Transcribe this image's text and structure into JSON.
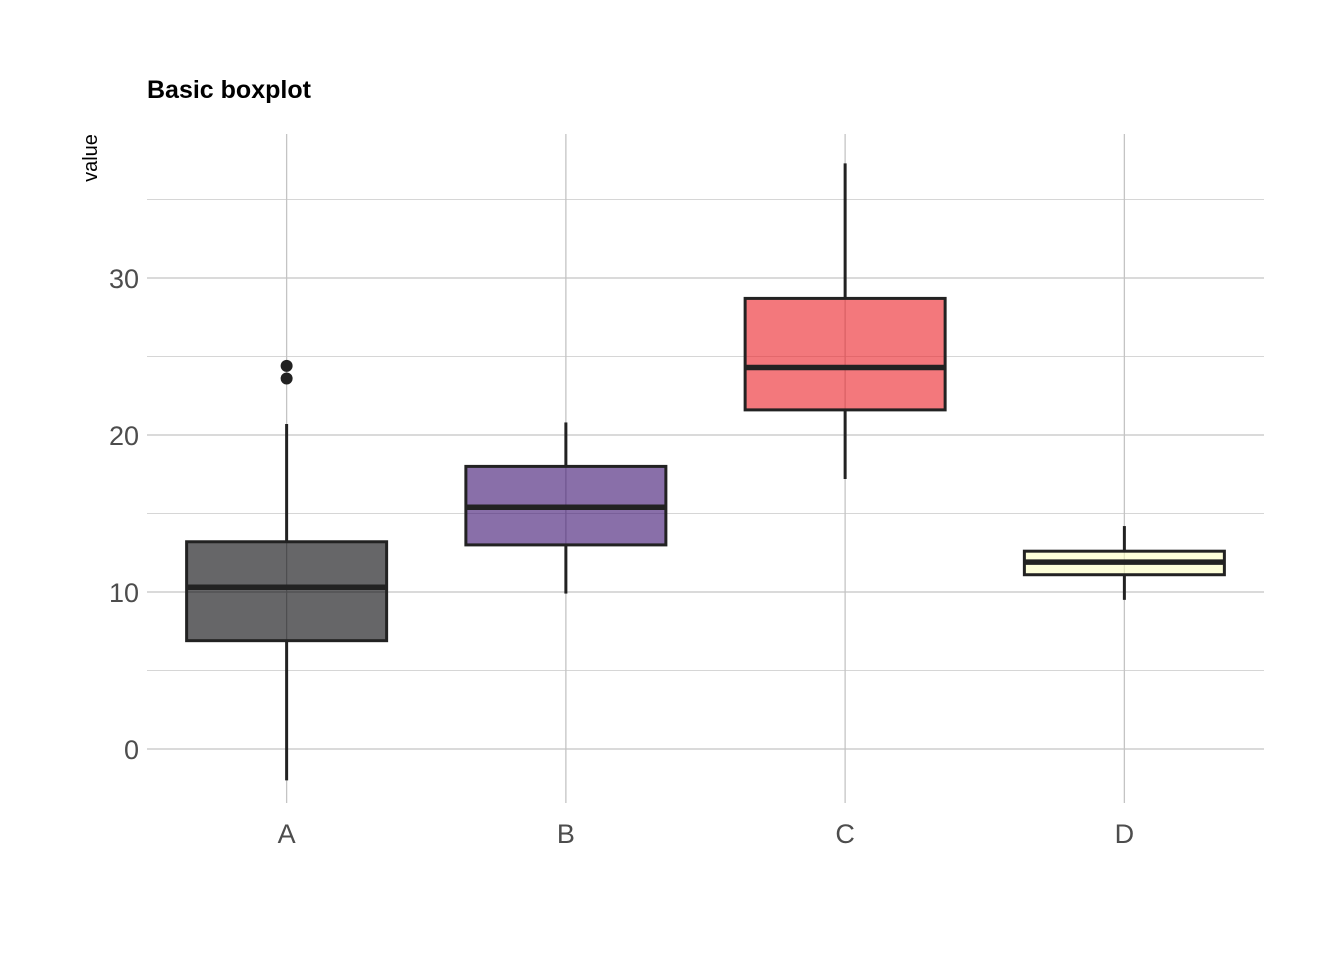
{
  "chart_data": {
    "type": "boxplot",
    "title": "Basic boxplot",
    "xlabel": "",
    "ylabel": "value",
    "categories": [
      "A",
      "B",
      "C",
      "D"
    ],
    "ylim": [
      -4,
      39
    ],
    "yticks": [
      0,
      10,
      20,
      30
    ],
    "grid": true,
    "legend": "none",
    "boxes": [
      {
        "category": "A",
        "whisker_low": -2.0,
        "q1": 6.9,
        "median": 10.3,
        "q3": 13.2,
        "whisker_high": 20.7,
        "outliers": [
          23.6,
          24.4
        ],
        "color": "#000004"
      },
      {
        "category": "B",
        "whisker_low": 9.9,
        "q1": 13.0,
        "median": 15.4,
        "q3": 18.0,
        "whisker_high": 20.8,
        "outliers": [],
        "color": "#3b0f70"
      },
      {
        "category": "C",
        "whisker_low": 17.2,
        "q1": 21.6,
        "median": 24.3,
        "q3": 28.7,
        "whisker_high": 37.3,
        "outliers": [],
        "color": "#eb1e24"
      },
      {
        "category": "D",
        "whisker_low": 9.5,
        "q1": 11.1,
        "median": 11.9,
        "q3": 12.6,
        "whisker_high": 14.2,
        "outliers": [],
        "color": "#fcfdbf"
      }
    ]
  }
}
